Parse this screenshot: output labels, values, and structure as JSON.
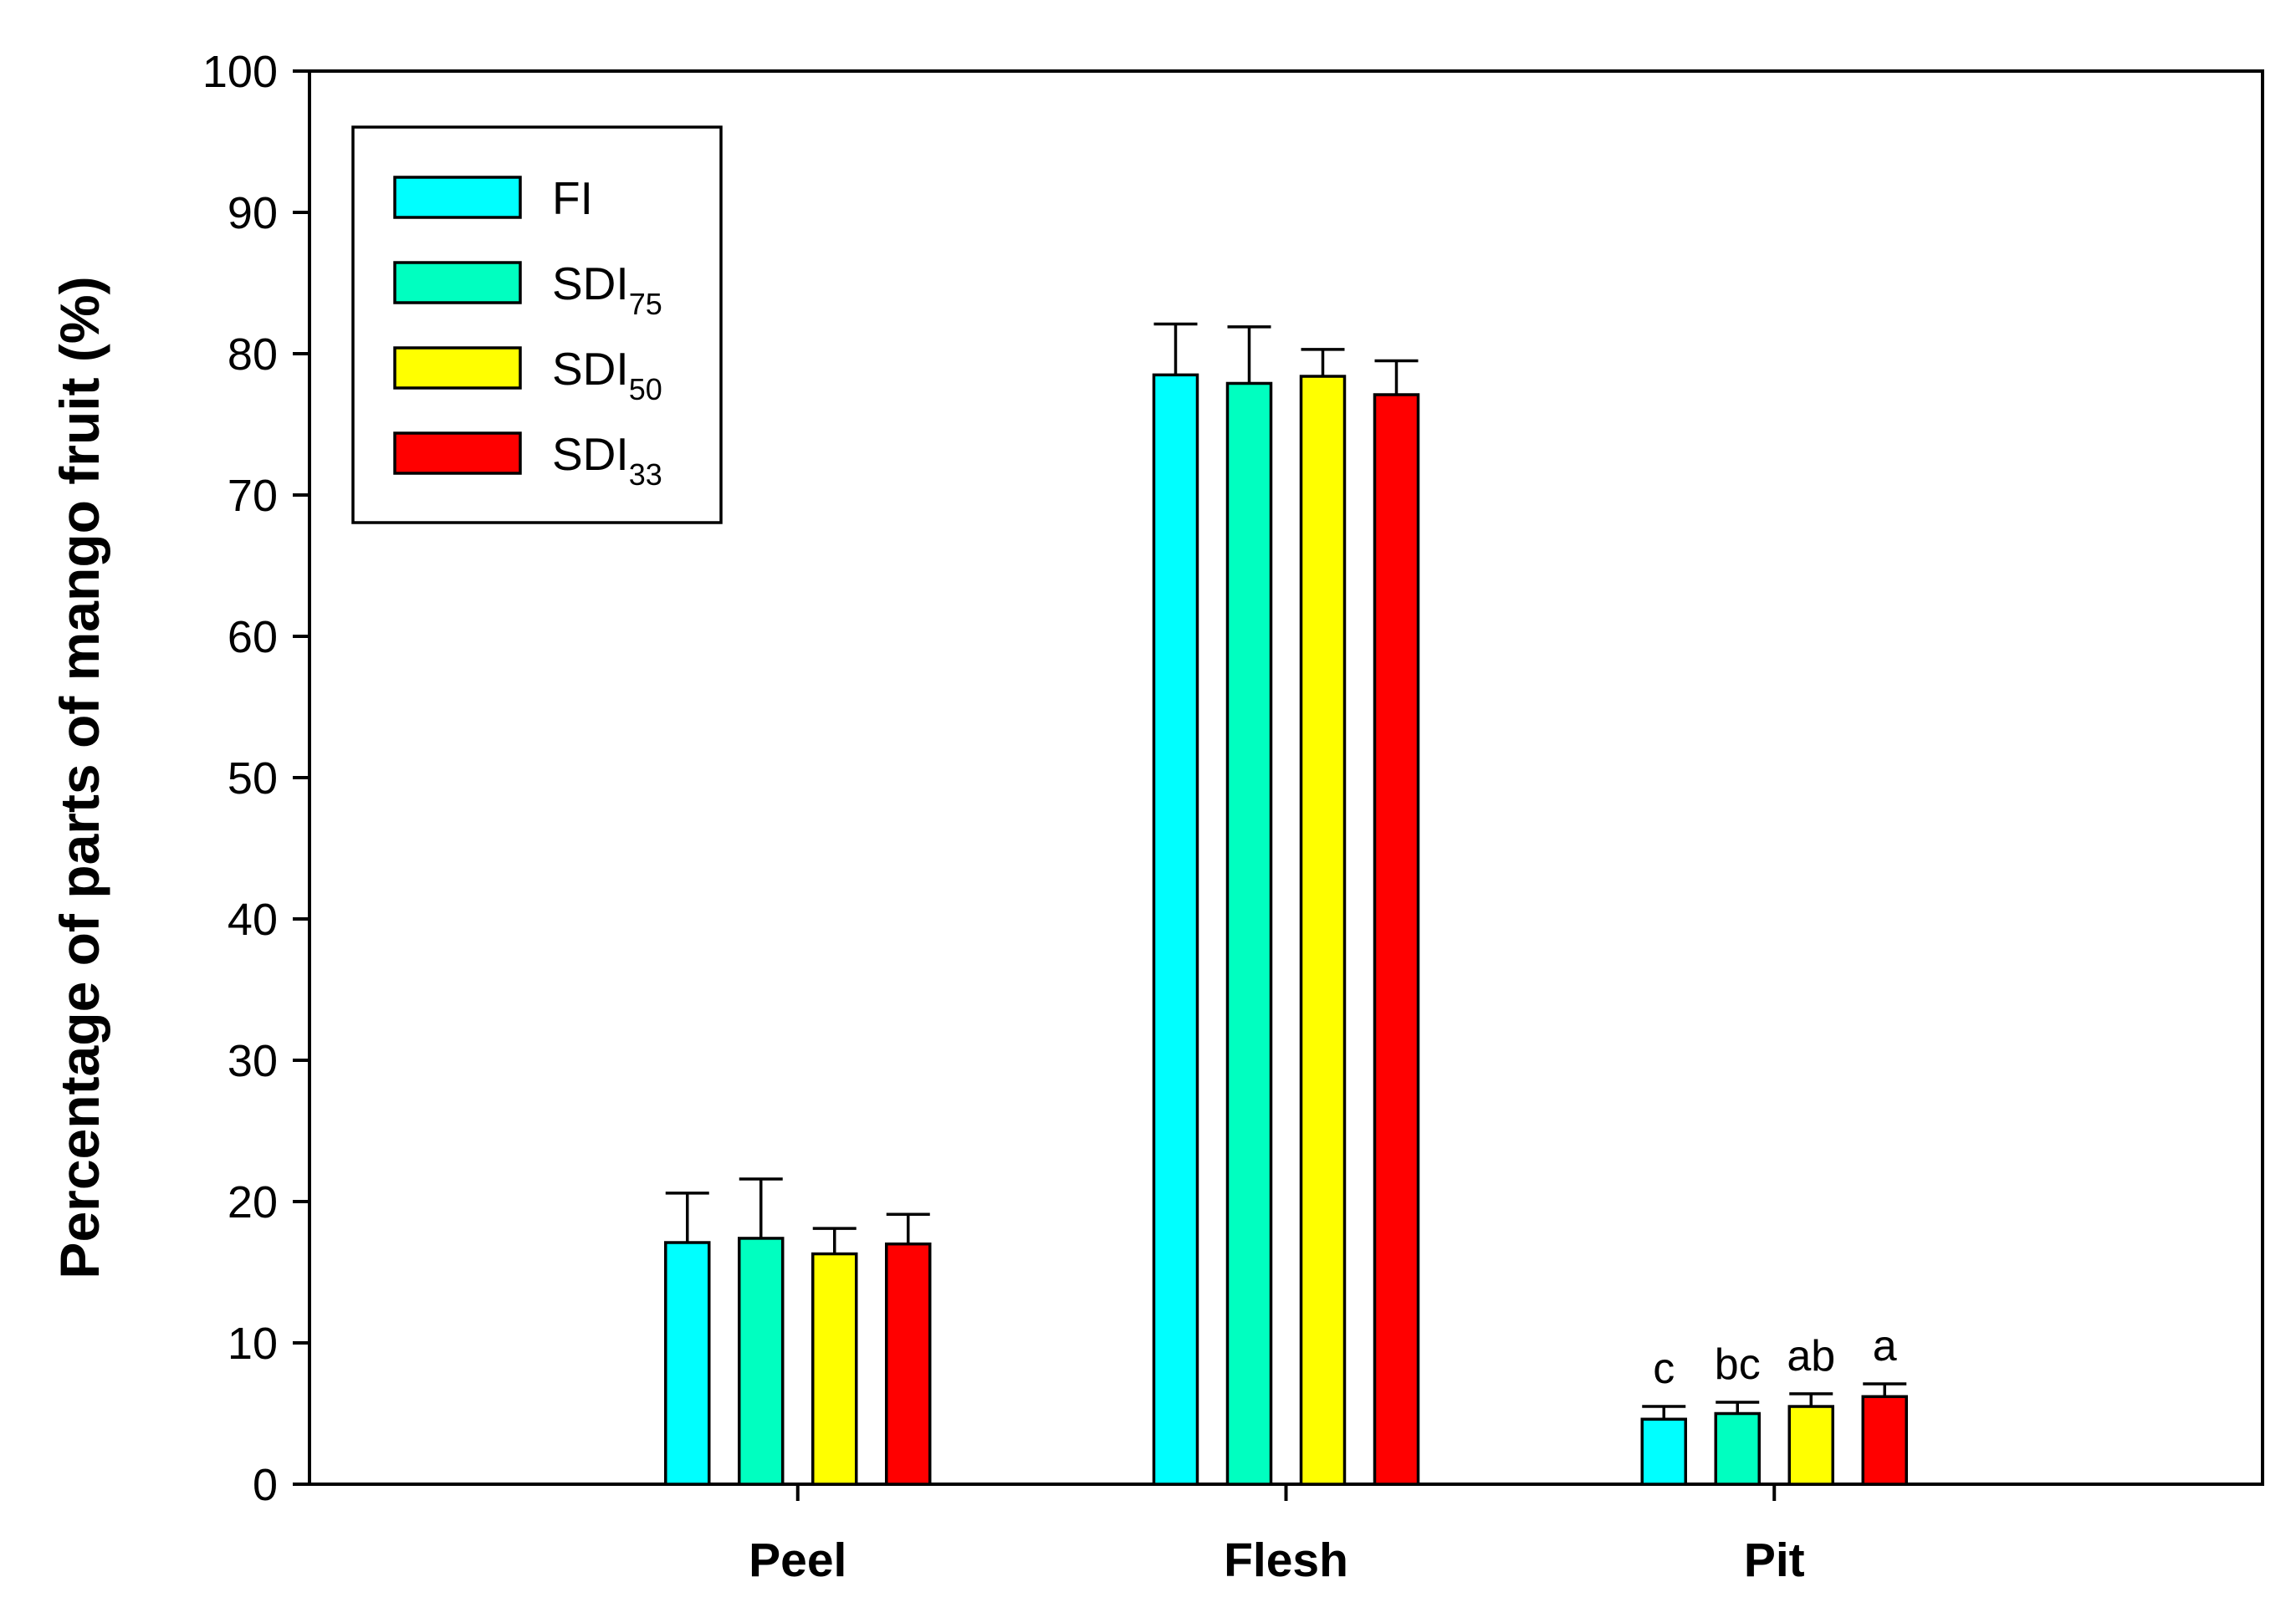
{
  "chart_data": {
    "type": "bar",
    "title": "",
    "xlabel": "",
    "ylabel": "Percentage of parts of mango fruit (%)",
    "ylim": [
      0,
      100
    ],
    "yticks": [
      0,
      10,
      20,
      30,
      40,
      50,
      60,
      70,
      80,
      90,
      100
    ],
    "grid": false,
    "legend_position": "top-left",
    "categories": [
      "Peel",
      "Flesh",
      "Pit"
    ],
    "series": [
      {
        "name": "FI",
        "subscript": "",
        "color": "#00FFFF",
        "values": [
          17.1,
          78.5,
          4.6
        ],
        "errors": [
          3.5,
          3.6,
          0.9
        ]
      },
      {
        "name": "SDI",
        "subscript": "75",
        "color": "#00FFC0",
        "values": [
          17.4,
          77.9,
          5.0
        ],
        "errors": [
          4.2,
          4.0,
          0.8
        ]
      },
      {
        "name": "SDI",
        "subscript": "50",
        "color": "#FFFF00",
        "values": [
          16.3,
          78.4,
          5.5
        ],
        "errors": [
          1.8,
          1.9,
          0.9
        ]
      },
      {
        "name": "SDI",
        "subscript": "33",
        "color": "#FF0000",
        "values": [
          17.0,
          77.1,
          6.2
        ],
        "errors": [
          2.1,
          2.4,
          0.9
        ]
      }
    ],
    "annotations": [
      {
        "category": "Pit",
        "series_index": 0,
        "text": "c"
      },
      {
        "category": "Pit",
        "series_index": 1,
        "text": "bc"
      },
      {
        "category": "Pit",
        "series_index": 2,
        "text": "ab"
      },
      {
        "category": "Pit",
        "series_index": 3,
        "text": "a"
      }
    ]
  }
}
